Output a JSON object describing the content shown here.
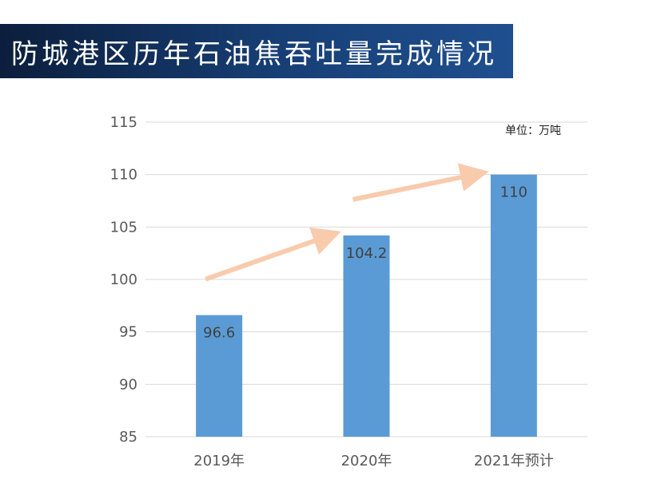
{
  "title": "防城港区历年石油焦吞吐量完成情况",
  "unit_label": "单位：万吨",
  "colors": {
    "banner": "#173f76",
    "bar": "#5b9bd5",
    "arrow": "#f8cbad",
    "grid": "#d9d9d9",
    "text": "#595959"
  },
  "chart_data": {
    "type": "bar",
    "title": "防城港区历年石油焦吞吐量完成情况",
    "xlabel": "",
    "ylabel": "",
    "categories": [
      "2019年",
      "2020年",
      "2021年预计"
    ],
    "values": [
      96.6,
      104.2,
      110
    ],
    "data_labels": [
      "96.6",
      "104.2",
      "110"
    ],
    "ylim": [
      85,
      115
    ],
    "yticks": [
      85,
      90,
      95,
      100,
      105,
      110,
      115
    ],
    "grid": true,
    "annotations": [
      "growth arrows between bars"
    ]
  }
}
